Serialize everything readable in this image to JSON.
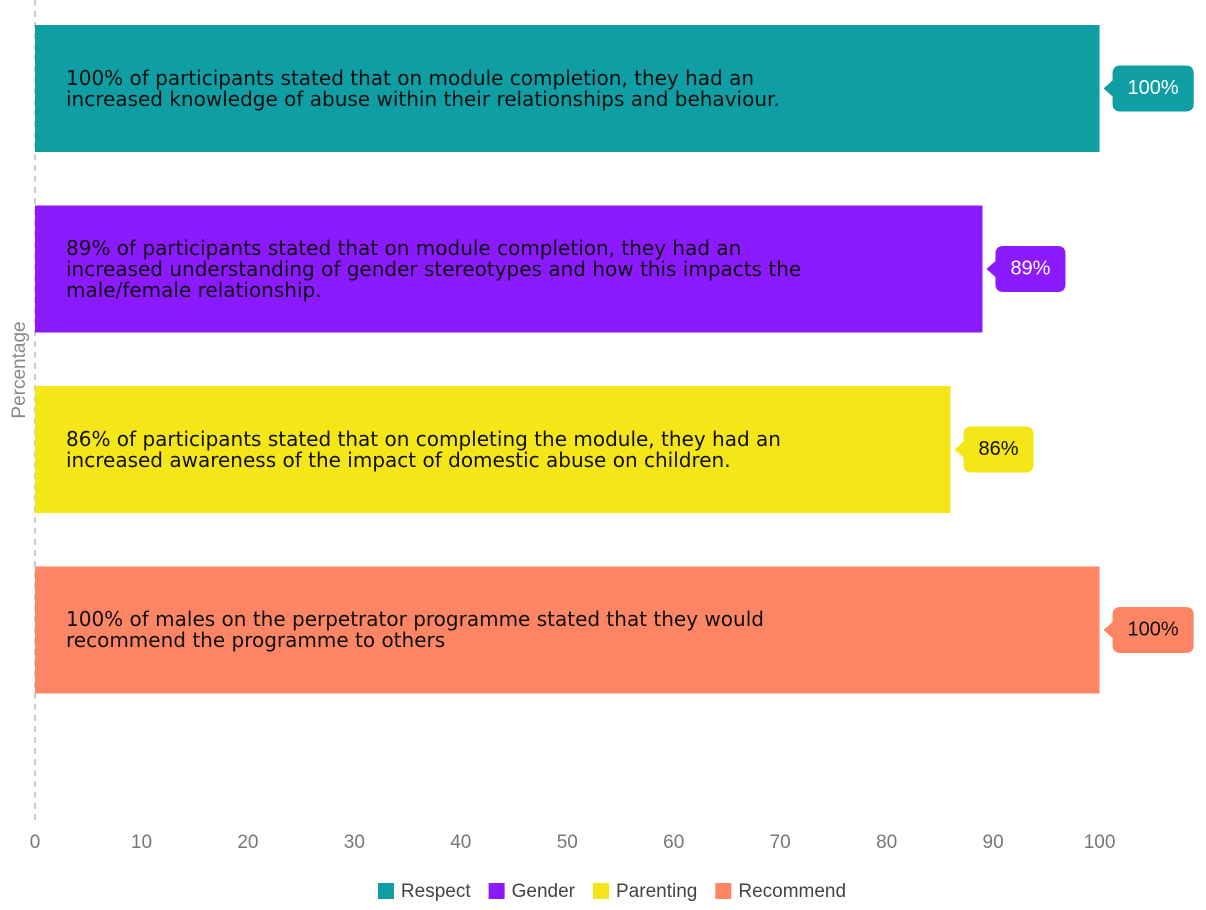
{
  "chart_data": {
    "type": "bar",
    "orientation": "horizontal",
    "ylabel": "Percentage",
    "xlim": [
      0,
      110
    ],
    "xticks": [
      0,
      10,
      20,
      30,
      40,
      50,
      60,
      70,
      80,
      90,
      100
    ],
    "grid": false,
    "legend": "bottom",
    "series": [
      {
        "name": "Respect",
        "color": "#0f9ea3",
        "values": [
          100
        ],
        "value_labels": [
          "100%"
        ],
        "annotation": "100% of participants stated that on module completion, they had an increased knowledge of abuse within their relationships and behaviour."
      },
      {
        "name": "Gender",
        "color": "#8c1aff",
        "values": [
          89
        ],
        "value_labels": [
          "89%"
        ],
        "annotation": "89% of participants stated that on module completion, they had an increased understanding of gender stereotypes and how this impacts the male/female relationship."
      },
      {
        "name": "Parenting",
        "color": "#f5e617",
        "values": [
          86
        ],
        "value_labels": [
          "86%"
        ],
        "annotation": "86% of participants stated that on completing the module, they had an increased awareness of the impact of domestic abuse on children."
      },
      {
        "name": "Recommend",
        "color": "#fc8566",
        "values": [
          100
        ],
        "value_labels": [
          "100%"
        ],
        "annotation": "100% of males on the perpetrator programme stated that they would recommend the programme to others"
      }
    ]
  }
}
